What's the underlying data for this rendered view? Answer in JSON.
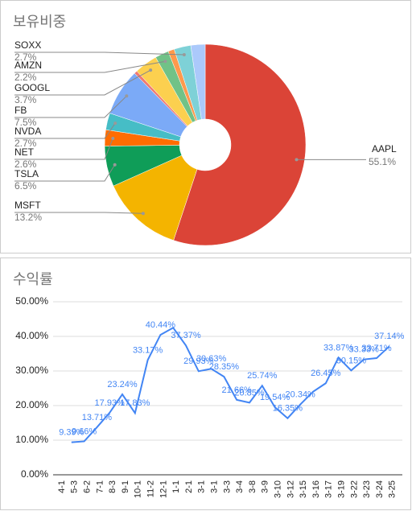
{
  "chart_data": [
    {
      "type": "pie",
      "title": "보유비중",
      "categories": [
        "AAPL",
        "MSFT",
        "TSLA",
        "NET",
        "NVDA",
        "FB",
        null,
        "GOOGL",
        "AMZN",
        null,
        "SOXX",
        null
      ],
      "values": [
        55.1,
        13.2,
        6.5,
        2.6,
        2.7,
        7.5,
        0.5,
        3.7,
        2.2,
        1.0,
        2.7,
        2.3
      ],
      "value_labels": [
        "55.1%",
        "13.2%",
        "6.5%",
        "2.6%",
        "2.7%",
        "7.5%",
        null,
        "3.7%",
        "2.2%",
        null,
        "2.7%",
        null
      ],
      "colors": [
        "#db4437",
        "#f4b400",
        "#0f9d58",
        "#ff6d01",
        "#46bdc6",
        "#7baaf7",
        "#f07b72",
        "#fcd04f",
        "#71c287",
        "#ff994d",
        "#7ed1d7",
        "#abc9fb"
      ],
      "donut": true
    },
    {
      "type": "line",
      "title": "수익률",
      "categories": [
        "4-1",
        "5-3",
        "6-2",
        "7-1",
        "8-3",
        "9-1",
        "10-1",
        "11-2",
        "12-1",
        "1-1",
        "2-1",
        "3-1",
        "3-1",
        "3-3",
        "3-4",
        "3-8",
        "3-9",
        "3-10",
        "3-12",
        "3-15",
        "3-16",
        "3-17",
        "3-19",
        "3-22",
        "3-23",
        "3-24",
        "3-25"
      ],
      "series": [
        {
          "name": "수익률",
          "color": "#4285f4",
          "values": [
            null,
            9.39,
            9.66,
            13.71,
            17.93,
            23.24,
            17.83,
            33.17,
            40.44,
            42.5,
            37.37,
            29.93,
            30.63,
            28.35,
            21.66,
            20.85,
            25.74,
            19.54,
            16.35,
            20.34,
            24.0,
            26.45,
            33.87,
            30.15,
            33.33,
            33.71,
            37.14
          ],
          "value_labels": [
            null,
            "9.39%",
            "9.66%",
            "13.71%",
            "17.93%",
            "23.24%",
            "17.83%",
            "33.17%",
            "40.44%",
            null,
            "37.37%",
            "29.93%",
            "30.63%",
            "28.35%",
            "21.66%",
            "20.85%",
            "25.74%",
            "19.54%",
            "16.35%",
            "20.34%",
            null,
            "26.45%",
            "33.87%",
            "30.15%",
            "33.33%",
            "33.71%",
            "37.14%"
          ]
        }
      ],
      "ylim": [
        0,
        50
      ],
      "yticks": [
        {
          "value": 0,
          "label": "0.00%"
        },
        {
          "value": 10,
          "label": "10.00%"
        },
        {
          "value": 20,
          "label": "20.00%"
        },
        {
          "value": 30,
          "label": "30.00%"
        },
        {
          "value": 40,
          "label": "40.00%"
        },
        {
          "value": 50,
          "label": "50.00%"
        }
      ],
      "grid": true
    }
  ]
}
